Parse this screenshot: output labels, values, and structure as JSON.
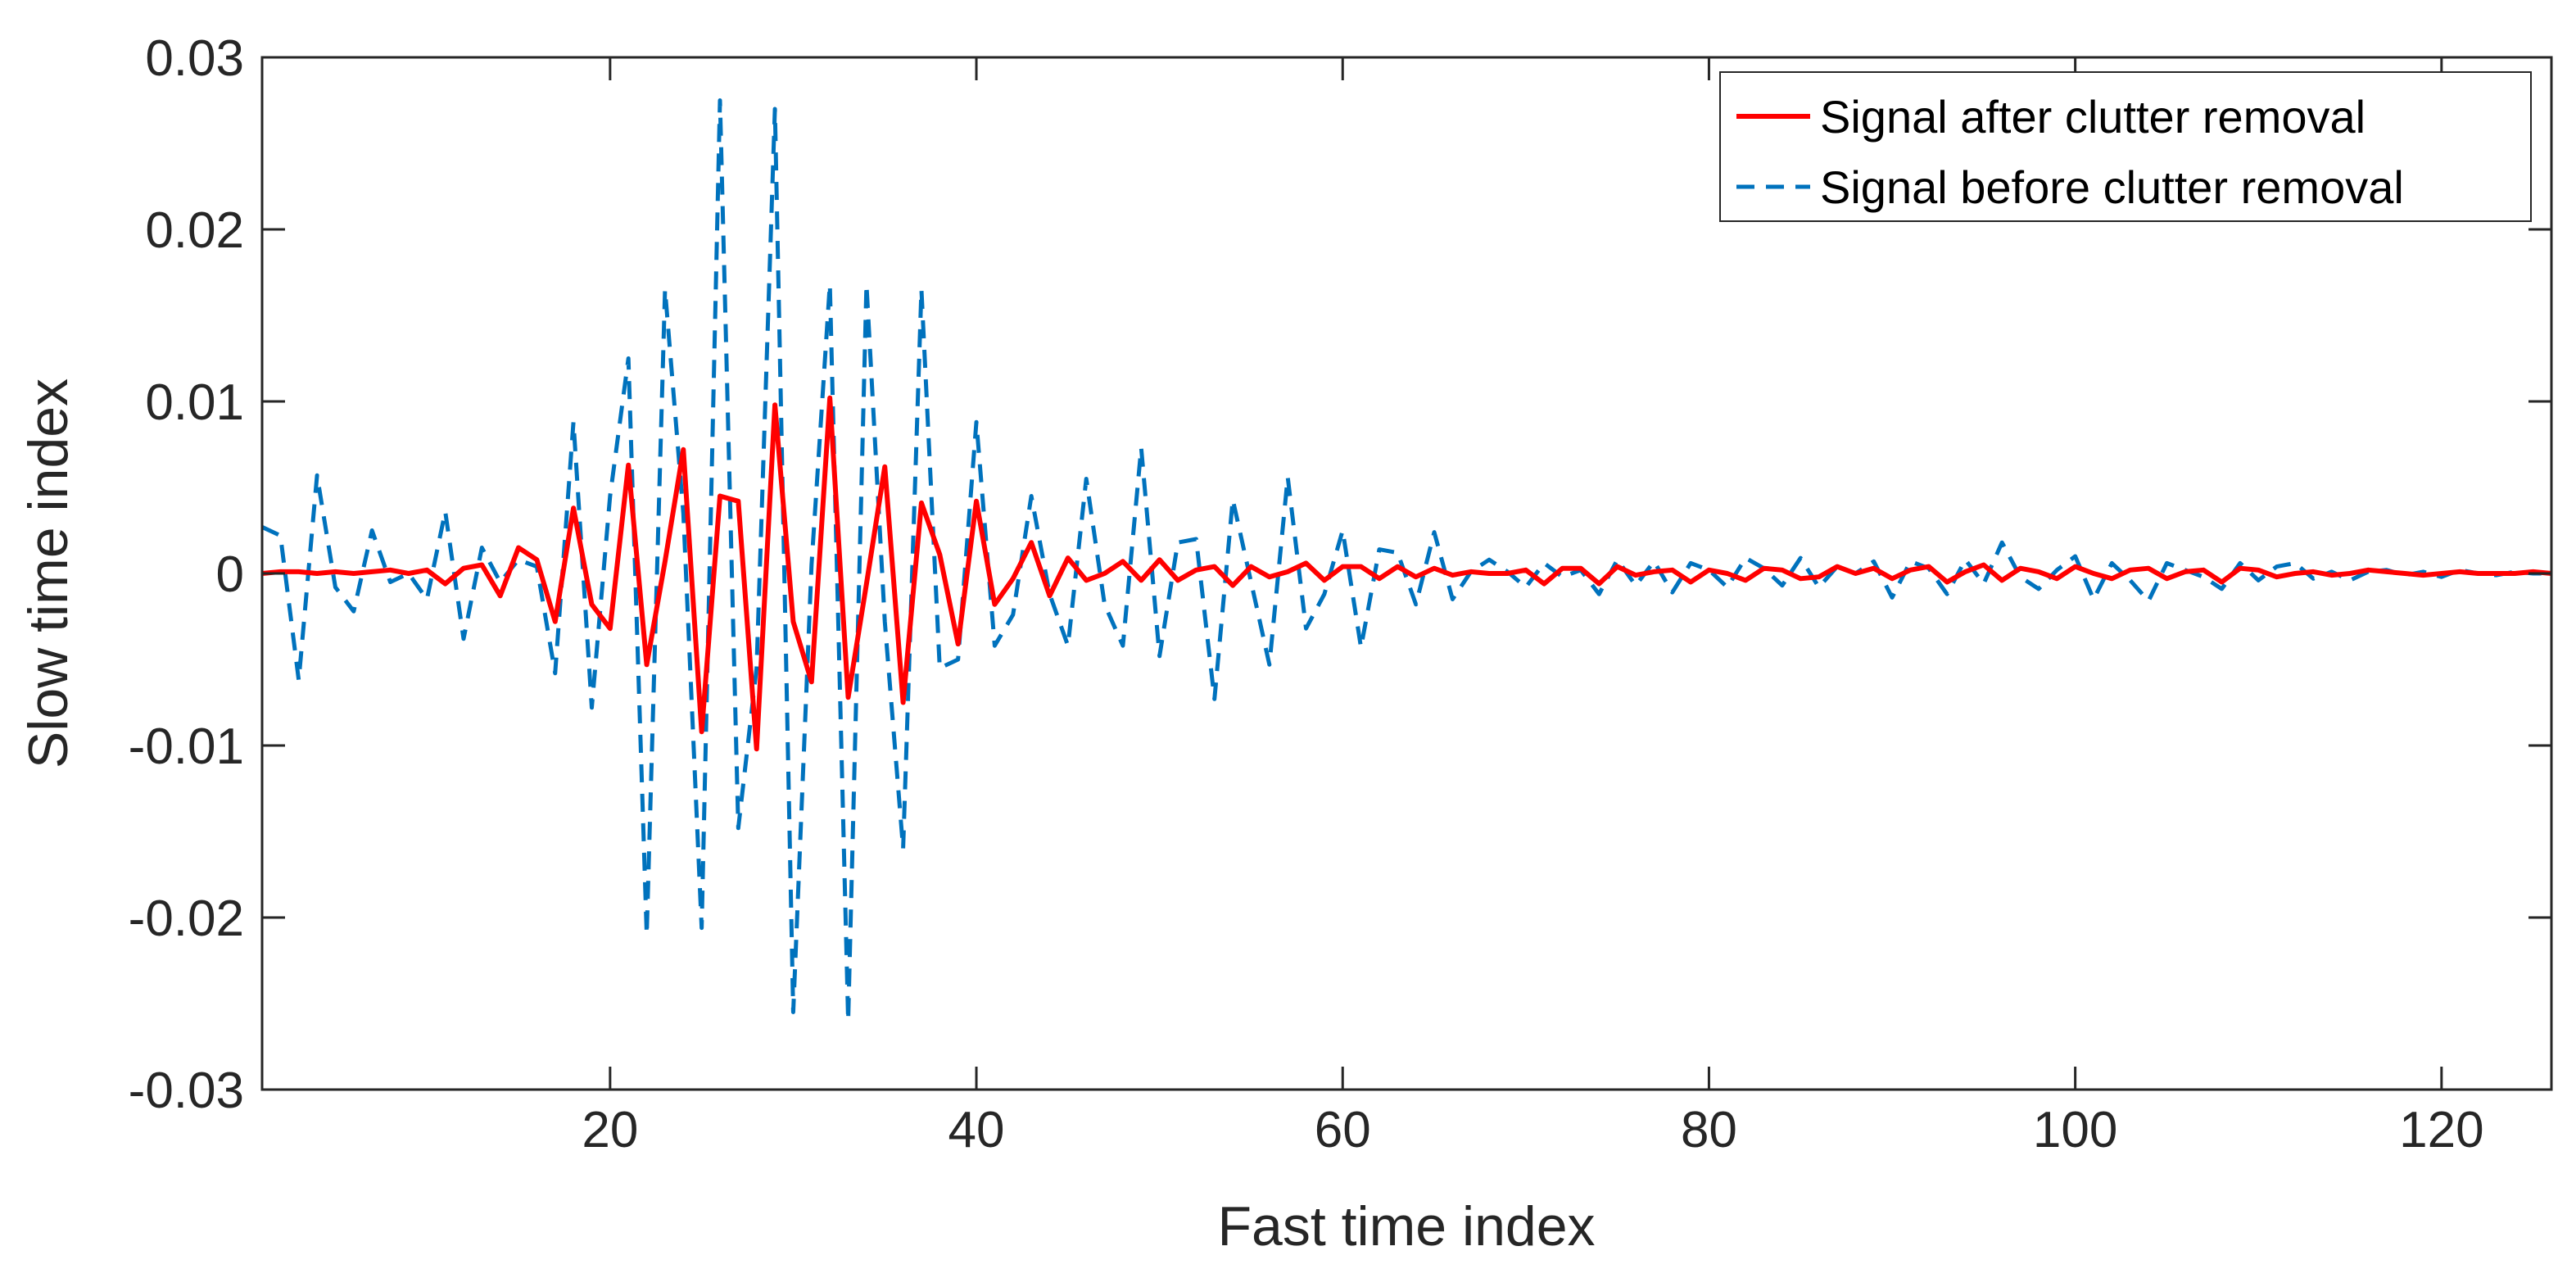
{
  "chart_data": {
    "type": "line",
    "title": "",
    "xlabel": "Fast time index",
    "ylabel": "Slow time index",
    "xlim": [
      1,
      126
    ],
    "ylim": [
      -0.03,
      0.03
    ],
    "xticks": [
      20,
      40,
      60,
      80,
      100,
      120
    ],
    "xtick_labels": [
      "20",
      "40",
      "60",
      "80",
      "100",
      "120"
    ],
    "yticks": [
      -0.03,
      -0.02,
      -0.01,
      0,
      0.01,
      0.02,
      0.03
    ],
    "ytick_labels": [
      "-0.03",
      "-0.02",
      "-0.01",
      "0",
      "0.01",
      "0.02",
      "0.03"
    ],
    "grid": false,
    "legend_position": "top-right",
    "x": [
      1,
      2,
      3,
      4,
      5,
      6,
      7,
      8,
      9,
      10,
      11,
      12,
      13,
      14,
      15,
      16,
      17,
      18,
      19,
      20,
      21,
      22,
      23,
      24,
      25,
      26,
      27,
      28,
      29,
      30,
      31,
      32,
      33,
      34,
      35,
      36,
      37,
      38,
      39,
      40,
      41,
      42,
      43,
      44,
      45,
      46,
      47,
      48,
      49,
      50,
      51,
      52,
      53,
      54,
      55,
      56,
      57,
      58,
      59,
      60,
      61,
      62,
      63,
      64,
      65,
      66,
      67,
      68,
      69,
      70,
      71,
      72,
      73,
      74,
      75,
      76,
      77,
      78,
      79,
      80,
      81,
      82,
      83,
      84,
      85,
      86,
      87,
      88,
      89,
      90,
      91,
      92,
      93,
      94,
      95,
      96,
      97,
      98,
      99,
      100,
      101,
      102,
      103,
      104,
      105,
      106,
      107,
      108,
      109,
      110,
      111,
      112,
      113,
      114,
      115,
      116,
      117,
      118,
      119,
      120,
      121,
      122,
      123,
      124,
      125,
      126
    ],
    "series": [
      {
        "name": "Signal after clutter removal",
        "color": "#ff0000",
        "dash": "solid",
        "values": [
          0,
          0.0001,
          0.0001,
          0,
          0.0001,
          0,
          0.0001,
          0.0002,
          0,
          0.0002,
          -0.0006,
          0.0003,
          0.0005,
          -0.0013,
          0.0015,
          0.0008,
          -0.0028,
          0.0038,
          -0.0018,
          -0.0032,
          0.0063,
          -0.0053,
          0.0007,
          0.0072,
          -0.0092,
          0.0045,
          0.0042,
          -0.0102,
          0.0098,
          -0.0028,
          -0.0063,
          0.0102,
          -0.0072,
          -0.0006,
          0.0062,
          -0.0075,
          0.0041,
          0.0011,
          -0.0041,
          0.0042,
          -0.0018,
          -0.0003,
          0.0018,
          -0.0013,
          0.0009,
          -0.0004,
          0,
          0.0007,
          -0.0004,
          0.0008,
          -0.0004,
          0.0002,
          0.0004,
          -0.0007,
          0.0004,
          -0.0002,
          0.0001,
          0.0006,
          -0.0004,
          0.0004,
          0.0004,
          -0.0003,
          0.0004,
          -0.0002,
          0.0003,
          -0.0001,
          0.0001,
          0,
          0,
          0.0002,
          -0.0006,
          0.0003,
          0.0003,
          -0.0006,
          0.0004,
          -0.0001,
          0.0001,
          0.0002,
          -0.0005,
          0.0002,
          0,
          -0.0004,
          0.0003,
          0.0002,
          -0.0003,
          -0.0002,
          0.0004,
          0,
          0.0003,
          -0.0003,
          0.0002,
          0.0004,
          -0.0005,
          0.0001,
          0.0005,
          -0.0004,
          0.0003,
          0.0001,
          -0.0003,
          0.0004,
          0,
          -0.0003,
          0.0002,
          0.0003,
          -0.0003,
          0.0001,
          0.0002,
          -0.0005,
          0.0003,
          0.0002,
          -0.0002,
          0,
          0.0001,
          -0.0001,
          0,
          0.0002,
          0.0001,
          0,
          -0.0001,
          0,
          0.0001,
          0,
          0,
          0,
          0.0001,
          0
        ]
      },
      {
        "name": "Signal before clutter removal",
        "color": "#0072bd",
        "dash": "dashed",
        "values": [
          0.0027,
          0.0022,
          -0.0062,
          0.0057,
          -0.0008,
          -0.0022,
          0.0025,
          -0.0005,
          0,
          -0.0015,
          0.0036,
          -0.0038,
          0.0015,
          -0.0005,
          0.0008,
          0.0004,
          -0.0058,
          0.0088,
          -0.0078,
          0.0045,
          0.0125,
          -0.021,
          0.0165,
          0.0035,
          -0.0206,
          0.0275,
          -0.0148,
          -0.0055,
          0.027,
          -0.0255,
          0.0005,
          0.0168,
          -0.026,
          0.0168,
          -0.0028,
          -0.016,
          0.0165,
          -0.0055,
          -0.005,
          0.0088,
          -0.0042,
          -0.0024,
          0.0045,
          -0.0012,
          -0.0042,
          0.0055,
          -0.0018,
          -0.0042,
          0.0073,
          -0.0048,
          0.0018,
          0.002,
          -0.0073,
          0.0043,
          -0.0005,
          -0.0053,
          0.0056,
          -0.0032,
          -0.0012,
          0.0025,
          -0.0043,
          0.0014,
          0.0012,
          -0.0018,
          0.0024,
          -0.0015,
          0.0001,
          0.0008,
          0.0001,
          -0.0008,
          0.0006,
          -0.0002,
          0.0002,
          -0.0012,
          0.0008,
          -0.0007,
          0.0007,
          -0.0011,
          0.0006,
          0.0002,
          -0.0008,
          0.0009,
          0.0003,
          -0.0007,
          0.0009,
          -0.0008,
          0.0004,
          0,
          0.0007,
          -0.0014,
          0.0007,
          0.0003,
          -0.0012,
          0.0008,
          -0.0006,
          0.0018,
          -0.0002,
          -0.0009,
          0.0002,
          0.001,
          -0.0015,
          0.0006,
          -0.0004,
          -0.0016,
          0.0006,
          0.0002,
          -0.0002,
          -0.0009,
          0.0006,
          -0.0004,
          0.0004,
          0.0006,
          -0.0003,
          0.0001,
          -0.0004,
          0.0001,
          0.0002,
          -0.0001,
          0.0001,
          -0.0002,
          0.0002,
          0,
          -0.0001,
          0.0001,
          0,
          0
        ]
      }
    ]
  }
}
